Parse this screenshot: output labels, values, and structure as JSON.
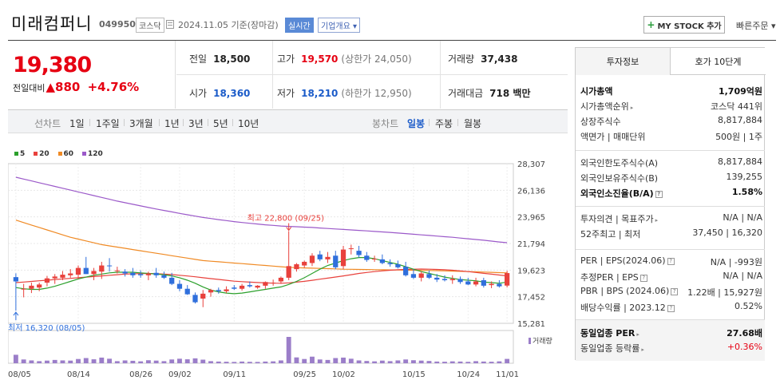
{
  "header": {
    "company": "미래컴퍼니",
    "code": "049950",
    "market": "코스닥",
    "date": "2024.11.05  기준(장마감)",
    "realtime": "실시간",
    "corp_info": "기업개요 ▾",
    "mystock_label": "MY STOCK 추가",
    "quick_order": "빠른주문 ▾"
  },
  "price": {
    "current": "19,380",
    "change_label": "전일대비",
    "change": "▲880",
    "change_pct": "+4.76%"
  },
  "stats": {
    "prev_close_label": "전일",
    "prev_close": "18,500",
    "high_label": "고가",
    "high": "19,570",
    "upper_limit": "(상한가 24,050)",
    "volume_label": "거래량",
    "volume": "37,438",
    "open_label": "시가",
    "open": "18,360",
    "low_label": "저가",
    "low": "18,210",
    "lower_limit": "(하한가 12,950)",
    "amount_label": "거래대금",
    "amount": "718 백만"
  },
  "toolbar": {
    "line_chart": "선차트",
    "periods": [
      "1일",
      "1주일",
      "3개월",
      "1년",
      "3년",
      "5년",
      "10년"
    ],
    "candle_chart": "봉차트",
    "candle_periods": [
      "일봉",
      "주봉",
      "월봉"
    ],
    "active_candle": "일봉"
  },
  "chart_data": {
    "type": "candlestick",
    "legend": [
      {
        "name": "5",
        "color": "#2ca02c"
      },
      {
        "name": "20",
        "color": "#e8413c"
      },
      {
        "name": "60",
        "color": "#f08a24"
      },
      {
        "name": "120",
        "color": "#9b59c9"
      }
    ],
    "y_ticks": [
      "28,307",
      "26,136",
      "23,965",
      "21,794",
      "19,623",
      "17,452",
      "15,281"
    ],
    "x_ticks": [
      "08/05",
      "08/14",
      "08/26",
      "09/02",
      "09/11",
      "09/25",
      "10/02",
      "10/15",
      "10/24",
      "11/01"
    ],
    "high_annotation": "최고 22,800 (09/25)",
    "low_annotation": "최저 16,320 (08/05)",
    "volume_label": "거래량",
    "ylim": [
      15281,
      28307
    ],
    "ohlc": [
      [
        19050,
        16320,
        19360,
        18700
      ],
      [
        18100,
        17400,
        18500,
        18100
      ],
      [
        18100,
        17750,
        18600,
        18350
      ],
      [
        18200,
        17900,
        18600,
        18450
      ],
      [
        18600,
        18300,
        19150,
        18950
      ],
      [
        18950,
        18500,
        19300,
        19100
      ],
      [
        19000,
        18800,
        19550,
        19250
      ],
      [
        19200,
        19000,
        19700,
        19350
      ],
      [
        19250,
        18900,
        20000,
        19800
      ],
      [
        19800,
        19300,
        20700,
        19300
      ],
      [
        19300,
        18800,
        19800,
        19550
      ],
      [
        19500,
        18900,
        20300,
        20000
      ],
      [
        20000,
        19500,
        20600,
        19950
      ],
      [
        19600,
        19350,
        19900,
        19600
      ],
      [
        19500,
        19100,
        19700,
        19350
      ],
      [
        19400,
        19000,
        19800,
        19200
      ],
      [
        19300,
        19000,
        19600,
        19200
      ],
      [
        19200,
        18800,
        19500,
        19350
      ],
      [
        19400,
        19000,
        19800,
        19200
      ],
      [
        19200,
        18900,
        19500,
        19000
      ],
      [
        19000,
        18400,
        19400,
        18500
      ],
      [
        18500,
        17900,
        18800,
        18100
      ],
      [
        18100,
        17600,
        18400,
        17650
      ],
      [
        17600,
        16900,
        17800,
        17000
      ],
      [
        17300,
        16600,
        18000,
        17700
      ],
      [
        17800,
        17450,
        18100,
        18000
      ],
      [
        18000,
        17700,
        18200,
        17900
      ],
      [
        17900,
        17750,
        18300,
        18050
      ],
      [
        18200,
        18000,
        18400,
        18100
      ],
      [
        18100,
        17950,
        18500,
        18350
      ],
      [
        18400,
        18200,
        18700,
        18300
      ],
      [
        18200,
        18100,
        18400,
        18350
      ],
      [
        18350,
        18100,
        18700,
        18650
      ],
      [
        18600,
        18350,
        18850,
        18600
      ],
      [
        18700,
        18500,
        19100,
        19000
      ],
      [
        19000,
        18800,
        22800,
        19950
      ],
      [
        19700,
        19500,
        20200,
        20100
      ],
      [
        20000,
        19800,
        20400,
        20300
      ],
      [
        20200,
        19950,
        21000,
        20800
      ],
      [
        20900,
        20350,
        21200,
        20500
      ],
      [
        20500,
        20200,
        21100,
        20700
      ],
      [
        20800,
        19700,
        21200,
        19850
      ],
      [
        19950,
        19700,
        21600,
        21300
      ],
      [
        21400,
        20900,
        21700,
        21400
      ],
      [
        21200,
        20650,
        21600,
        20850
      ],
      [
        20800,
        20300,
        21100,
        20450
      ],
      [
        20500,
        20300,
        20800,
        20550
      ],
      [
        20500,
        20100,
        20900,
        20200
      ],
      [
        20200,
        19900,
        20500,
        20100
      ],
      [
        20100,
        19750,
        20400,
        19850
      ],
      [
        19900,
        19100,
        20300,
        19200
      ],
      [
        19300,
        18900,
        19700,
        19000
      ],
      [
        19000,
        18700,
        19500,
        19350
      ],
      [
        19300,
        18900,
        19600,
        19000
      ],
      [
        19000,
        18650,
        19300,
        18850
      ],
      [
        18900,
        18700,
        19200,
        18800
      ],
      [
        18800,
        18500,
        19200,
        18900
      ],
      [
        18900,
        18500,
        19100,
        18650
      ],
      [
        18700,
        18400,
        19000,
        18450
      ],
      [
        18450,
        18300,
        19000,
        18700
      ],
      [
        18800,
        18200,
        19000,
        18350
      ],
      [
        18400,
        18150,
        18700,
        18500
      ],
      [
        18500,
        18200,
        18800,
        18300
      ],
      [
        18360,
        18210,
        19570,
        19380
      ]
    ],
    "ma120": [
      27200,
      27050,
      26900,
      26750,
      26600,
      26450,
      26300,
      26150,
      26000,
      25850,
      25700,
      25550,
      25400,
      25250,
      25120,
      24990,
      24860,
      24730,
      24610,
      24490,
      24370,
      24250,
      24140,
      24030,
      23920,
      23830,
      23740,
      23660,
      23580,
      23510,
      23440,
      23380,
      23320,
      23270,
      23220,
      23190,
      23160,
      23130,
      23100,
      23060,
      23020,
      22980,
      22940,
      22900,
      22860,
      22820,
      22780,
      22740,
      22700,
      22650,
      22600,
      22550,
      22500,
      22450,
      22400,
      22350,
      22300,
      22240,
      22180,
      22120,
      22060,
      21990,
      21920,
      21860
    ],
    "ma60": [
      23700,
      23500,
      23300,
      23100,
      22900,
      22700,
      22500,
      22300,
      22150,
      22000,
      21850,
      21700,
      21600,
      21500,
      21400,
      21300,
      21200,
      21100,
      21000,
      20900,
      20800,
      20700,
      20600,
      20500,
      20400,
      20350,
      20300,
      20250,
      20200,
      20150,
      20100,
      20050,
      20000,
      19950,
      19900,
      19850,
      19820,
      19800,
      19780,
      19760,
      19740,
      19720,
      19700,
      19690,
      19680,
      19670,
      19660,
      19650,
      19640,
      19630,
      19620,
      19610,
      19600,
      19590,
      19580,
      19560,
      19540,
      19520,
      19500,
      19480,
      19460,
      19440,
      19420,
      19400
    ],
    "ma20": [
      18600,
      18650,
      18700,
      18750,
      18800,
      18850,
      18900,
      18950,
      19000,
      19050,
      19100,
      19150,
      19200,
      19250,
      19300,
      19320,
      19340,
      19350,
      19330,
      19300,
      19260,
      19200,
      19140,
      19080,
      19000,
      18930,
      18860,
      18790,
      18720,
      18680,
      18640,
      18610,
      18580,
      18560,
      18550,
      18580,
      18640,
      18710,
      18790,
      18880,
      18970,
      19060,
      19150,
      19250,
      19350,
      19430,
      19500,
      19560,
      19610,
      19650,
      19680,
      19700,
      19710,
      19700,
      19680,
      19650,
      19610,
      19560,
      19500,
      19430,
      19360,
      19290,
      19220,
      19150
    ],
    "ma5": [
      18200,
      18100,
      18050,
      18050,
      18150,
      18300,
      18500,
      18700,
      18900,
      19050,
      19200,
      19300,
      19400,
      19450,
      19450,
      19450,
      19400,
      19350,
      19300,
      19250,
      19150,
      19000,
      18800,
      18550,
      18250,
      18000,
      17850,
      17750,
      17700,
      17750,
      17850,
      17950,
      18050,
      18150,
      18250,
      18450,
      18700,
      19000,
      19350,
      19700,
      20000,
      20200,
      20400,
      20550,
      20650,
      20650,
      20550,
      20400,
      20250,
      20100,
      19900,
      19700,
      19500,
      19350,
      19200,
      19050,
      18950,
      18850,
      18800,
      18750,
      18650,
      18600,
      18550,
      18650
    ],
    "volume": [
      90,
      40,
      30,
      22,
      28,
      35,
      30,
      28,
      45,
      55,
      42,
      60,
      48,
      22,
      30,
      26,
      20,
      32,
      28,
      22,
      40,
      48,
      42,
      52,
      38,
      22,
      18,
      16,
      14,
      18,
      15,
      14,
      18,
      20,
      30,
      280,
      62,
      45,
      70,
      40,
      35,
      55,
      60,
      48,
      30,
      24,
      20,
      28,
      22,
      30,
      40,
      32,
      28,
      24,
      18,
      16,
      20,
      18,
      15,
      22,
      18,
      16,
      20,
      46
    ]
  },
  "side": {
    "tab_invest": "투자정보",
    "tab_orderbook": "호가 10단계",
    "rows_a": [
      {
        "k": "시가총액",
        "v": "1,709억원",
        "bold": true
      },
      {
        "k": "시가총액순위",
        "v": "코스닥 441위",
        "arrow": true
      },
      {
        "k": "상장주식수",
        "v": "8,817,884"
      },
      {
        "k": "액면가 | 매매단위",
        "v": "500원 | 1주"
      }
    ],
    "rows_b": [
      {
        "k": "외국인한도주식수(A)",
        "v": "8,817,884"
      },
      {
        "k": "외국인보유주식수(B)",
        "v": "139,255"
      },
      {
        "k": "외국인소진율(B/A)",
        "v": "1.58%",
        "bold": true,
        "help": true
      }
    ],
    "rows_c": [
      {
        "k": "투자의견 | 목표주가",
        "v": "N/A | N/A",
        "arrow": true
      },
      {
        "k": "52주최고 | 최저",
        "v": "37,450 | 16,320"
      }
    ],
    "rows_d": [
      {
        "k": "PER | EPS(2024.06)",
        "v": "N/A | -993원",
        "help": true
      },
      {
        "k": "추정PER | EPS",
        "v": "N/A | N/A",
        "help": true
      },
      {
        "k": "PBR | BPS (2024.06)",
        "v": "1.22배 | 15,927원",
        "help": true
      },
      {
        "k": "배당수익률 | 2023.12",
        "v": "0.52%",
        "help": true
      }
    ],
    "rows_e": [
      {
        "k": "동일업종 PER",
        "v": "27.68배",
        "bold": true,
        "arrow": true
      },
      {
        "k": "동일업종 등락률",
        "v": "+0.36%",
        "red": true,
        "arrow": true
      }
    ]
  }
}
